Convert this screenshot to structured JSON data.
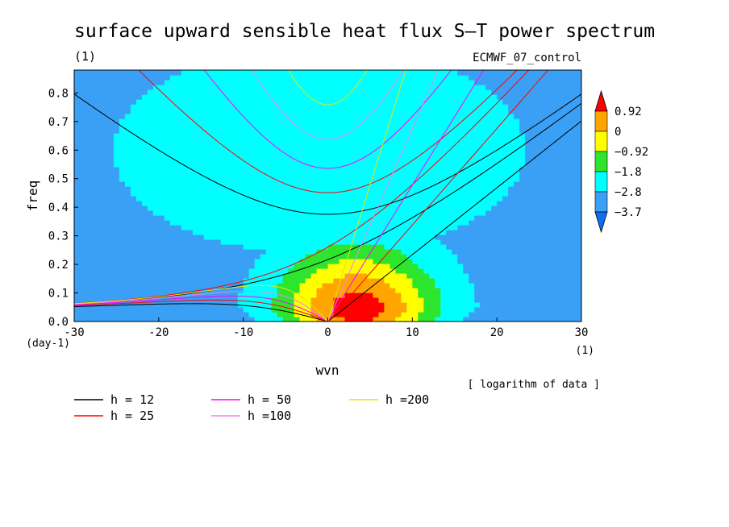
{
  "chart_data": {
    "type": "heatmap",
    "title": "surface upward sensible heat flux S–T power spectrum",
    "title_units": "(1)",
    "subtitle": "ECMWF_07_control",
    "xlabel": "wvn",
    "ylabel": "freq",
    "x_units": "(1)",
    "y_units": "(day-1)",
    "xlim": [
      -30,
      30
    ],
    "ylim": [
      0,
      0.88
    ],
    "xticks": [
      -30,
      -20,
      -10,
      0,
      10,
      20,
      30
    ],
    "yticks": [
      0.0,
      0.1,
      0.2,
      0.3,
      0.4,
      0.5,
      0.6,
      0.7,
      0.8
    ],
    "ytick_labels": [
      "0.0",
      "0.1",
      "0.2",
      "0.3",
      "0.4",
      "0.5",
      "0.6",
      "0.7",
      "0.8"
    ],
    "colorbar": {
      "levels": [
        -3.7,
        -2.8,
        -1.8,
        -0.92,
        0,
        0.92
      ],
      "labels": [
        "−3.7",
        "−2.8",
        "−1.8",
        "−0.92",
        "0",
        "0.92"
      ],
      "colors": [
        "#0d6ff0",
        "#3aa0f6",
        "#00ffff",
        "#2ee52e",
        "#ffff00",
        "#ffa500",
        "#ff0000"
      ]
    },
    "note": "[ logarithm of data ]",
    "field": {
      "background": -3.3,
      "peak": {
        "x": 3.5,
        "y": 0.02,
        "value": 1.5
      },
      "ridge": {
        "x": -1,
        "y": 0.6,
        "value": -2.2
      }
    },
    "dispersion_curves": [
      {
        "label": "h = 12",
        "h": 12,
        "color": "#000000"
      },
      {
        "label": "h = 25",
        "h": 25,
        "color": "#ff0000"
      },
      {
        "label": "h = 50",
        "h": 50,
        "color": "#ff00ff"
      },
      {
        "label": "h =100",
        "h": 100,
        "color": "#ee82ee"
      },
      {
        "label": "h =200",
        "h": 200,
        "color": "#e6e600"
      }
    ]
  }
}
